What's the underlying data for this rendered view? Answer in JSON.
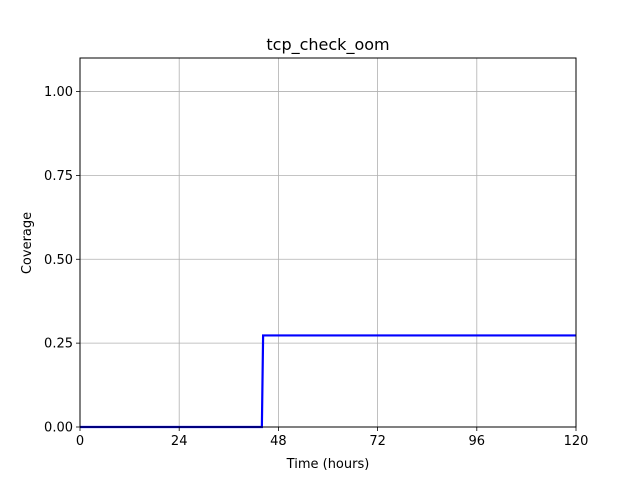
{
  "chart_data": {
    "type": "line",
    "title": "tcp_check_oom",
    "xlabel": "Time (hours)",
    "ylabel": "Coverage",
    "xlim": [
      0,
      120
    ],
    "ylim": [
      0,
      1.1
    ],
    "xticks": [
      0,
      24,
      48,
      72,
      96,
      120
    ],
    "xtick_labels": [
      "0",
      "24",
      "48",
      "72",
      "96",
      "120"
    ],
    "yticks": [
      0,
      0.25,
      0.5,
      0.75,
      1.0
    ],
    "ytick_labels": [
      "0.00",
      "0.25",
      "0.50",
      "0.75",
      "1.00"
    ],
    "grid": true,
    "series": [
      {
        "color": "#0000ff",
        "x": [
          0,
          44,
          44.3,
          120
        ],
        "y": [
          0,
          0,
          0.273,
          0.273
        ]
      }
    ]
  }
}
